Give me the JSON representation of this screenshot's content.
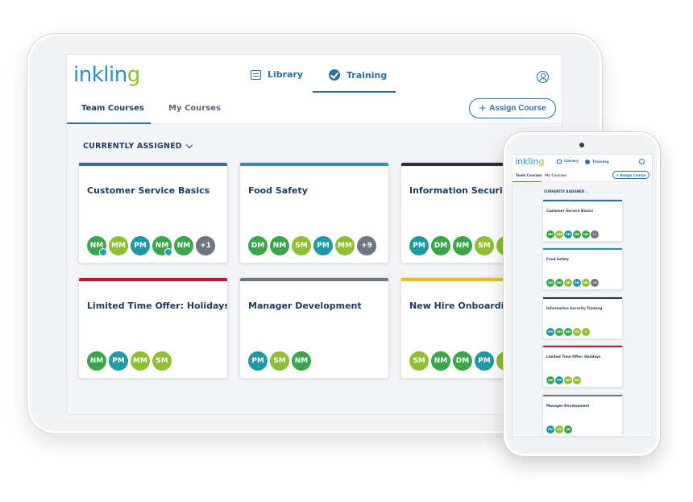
{
  "colors": {
    "teal": "#1f9aa2",
    "green": "#3aa54a",
    "lime": "#8fbf32",
    "gray": "#6e7580",
    "primary": "#2a6fa5"
  },
  "app": {
    "logo": "inklin",
    "logo_g": "g",
    "nav": {
      "library": "Library",
      "training": "Training"
    },
    "tabs": {
      "team": "Team Courses",
      "my": "My Courses"
    },
    "assign_label": "Assign Course",
    "section_label": "CURRENTLY ASSIGNED"
  },
  "courses": [
    {
      "title": "Customer Service Basics",
      "bar": "#2a6fa5",
      "avatars": [
        [
          "NM",
          "#3aa54a",
          true
        ],
        [
          "MM",
          "#8fbf32",
          false
        ],
        [
          "PM",
          "#1f9aa2",
          false
        ],
        [
          "NM",
          "#3aa54a",
          true
        ],
        [
          "NM",
          "#3aa54a",
          false
        ],
        [
          "+1",
          "#6e7580",
          false
        ]
      ]
    },
    {
      "title": "Food Safety",
      "bar": "#1f9aa2",
      "avatars": [
        [
          "DM",
          "#3aa54a",
          false
        ],
        [
          "NM",
          "#3aa54a",
          false
        ],
        [
          "SM",
          "#8fbf32",
          false
        ],
        [
          "PM",
          "#1f9aa2",
          false
        ],
        [
          "MM",
          "#8fbf32",
          false
        ],
        [
          "+9",
          "#6e7580",
          false
        ]
      ]
    },
    {
      "title": "Information Security Training",
      "display_title": "Information Security Tr",
      "bar": "#2b2f3a",
      "avatars": [
        [
          "PM",
          "#1f9aa2",
          false
        ],
        [
          "DM",
          "#3aa54a",
          false
        ],
        [
          "NM",
          "#3aa54a",
          false
        ],
        [
          "SM",
          "#8fbf32",
          false
        ],
        [
          "S",
          "#8fbf32",
          false
        ]
      ]
    },
    {
      "title": "Limited Time Offer: Holidays",
      "bar": "#b31e2f",
      "avatars": [
        [
          "NM",
          "#3aa54a",
          false
        ],
        [
          "PM",
          "#1f9aa2",
          false
        ],
        [
          "MM",
          "#8fbf32",
          false
        ],
        [
          "SM",
          "#8fbf32",
          false
        ]
      ]
    },
    {
      "title": "Manager Development",
      "bar": "#6e7580",
      "avatars": [
        [
          "PM",
          "#1f9aa2",
          false
        ],
        [
          "SM",
          "#8fbf32",
          false
        ],
        [
          "NM",
          "#3aa54a",
          false
        ]
      ]
    },
    {
      "title": "New Hire Onboarding",
      "bar": "#f0b638",
      "avatars": [
        [
          "SM",
          "#8fbf32",
          false
        ],
        [
          "NM",
          "#3aa54a",
          false
        ],
        [
          "DM",
          "#3aa54a",
          false
        ],
        [
          "PM",
          "#1f9aa2",
          false
        ],
        [
          "S",
          "#8fbf32",
          false
        ]
      ]
    }
  ]
}
